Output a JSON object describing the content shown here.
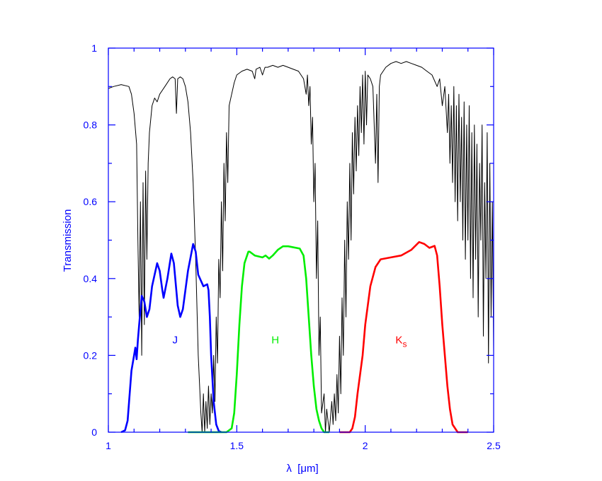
{
  "chart_data": {
    "type": "line",
    "title": "",
    "xlabel": "λ  [μm]",
    "ylabel": "Transmission",
    "xlim": [
      1.0,
      2.5
    ],
    "ylim": [
      0,
      1
    ],
    "x_ticks": [
      "1",
      "1.5",
      "2",
      "2.5"
    ],
    "x_tick_values": [
      1,
      1.5,
      2,
      2.5
    ],
    "y_ticks": [
      "0",
      "0.2",
      "0.4",
      "0.6",
      "0.8",
      "1"
    ],
    "y_tick_values": [
      0,
      0.2,
      0.4,
      0.6,
      0.8,
      1
    ],
    "grid": false,
    "colors": {
      "axis": "#0000ff",
      "atmosphere": "#000000",
      "J": "#0000ff",
      "H": "#00ee00",
      "Ks": "#ff0000"
    },
    "annotations": [
      {
        "text": "J",
        "x": 1.26,
        "y": 0.25,
        "color": "#0000ff"
      },
      {
        "text": "H",
        "x": 1.65,
        "y": 0.25,
        "color": "#00ee00"
      },
      {
        "text": "K",
        "sub": "s",
        "x": 2.14,
        "y": 0.25,
        "color": "#ff0000"
      }
    ],
    "series": [
      {
        "name": "atmosphere",
        "x": [
          1.0,
          1.02,
          1.05,
          1.08,
          1.09,
          1.1,
          1.11,
          1.115,
          1.12,
          1.125,
          1.13,
          1.135,
          1.14,
          1.145,
          1.15,
          1.155,
          1.16,
          1.17,
          1.18,
          1.19,
          1.2,
          1.22,
          1.24,
          1.25,
          1.26,
          1.265,
          1.27,
          1.28,
          1.29,
          1.3,
          1.31,
          1.32,
          1.33,
          1.34,
          1.35,
          1.36,
          1.365,
          1.37,
          1.375,
          1.38,
          1.385,
          1.39,
          1.395,
          1.4,
          1.405,
          1.41,
          1.415,
          1.42,
          1.425,
          1.43,
          1.435,
          1.44,
          1.445,
          1.45,
          1.455,
          1.46,
          1.465,
          1.47,
          1.48,
          1.49,
          1.5,
          1.52,
          1.54,
          1.56,
          1.57,
          1.575,
          1.59,
          1.6,
          1.61,
          1.62,
          1.64,
          1.66,
          1.68,
          1.7,
          1.72,
          1.74,
          1.75,
          1.76,
          1.77,
          1.775,
          1.78,
          1.785,
          1.79,
          1.795,
          1.8,
          1.805,
          1.81,
          1.815,
          1.82,
          1.825,
          1.83,
          1.84,
          1.845,
          1.85,
          1.86,
          1.87,
          1.875,
          1.88,
          1.885,
          1.89,
          1.895,
          1.9,
          1.905,
          1.91,
          1.915,
          1.92,
          1.925,
          1.93,
          1.935,
          1.94,
          1.945,
          1.95,
          1.955,
          1.96,
          1.965,
          1.97,
          1.975,
          1.98,
          1.985,
          1.99,
          1.995,
          2.0,
          2.005,
          2.01,
          2.02,
          2.03,
          2.04,
          2.045,
          2.05,
          2.055,
          2.06,
          2.08,
          2.1,
          2.12,
          2.14,
          2.16,
          2.18,
          2.2,
          2.22,
          2.24,
          2.26,
          2.28,
          2.29,
          2.3,
          2.31,
          2.32,
          2.325,
          2.33,
          2.335,
          2.34,
          2.345,
          2.35,
          2.355,
          2.36,
          2.365,
          2.37,
          2.375,
          2.38,
          2.385,
          2.39,
          2.395,
          2.4,
          2.405,
          2.41,
          2.415,
          2.42,
          2.425,
          2.43,
          2.435,
          2.44,
          2.445,
          2.45,
          2.455,
          2.46,
          2.465,
          2.47,
          2.475,
          2.48,
          2.485,
          2.49,
          2.495,
          2.5
        ],
        "y": [
          0.895,
          0.9,
          0.905,
          0.9,
          0.88,
          0.83,
          0.75,
          0.5,
          0.3,
          0.6,
          0.2,
          0.65,
          0.28,
          0.68,
          0.45,
          0.7,
          0.78,
          0.85,
          0.87,
          0.86,
          0.88,
          0.9,
          0.92,
          0.925,
          0.92,
          0.83,
          0.92,
          0.925,
          0.92,
          0.9,
          0.86,
          0.78,
          0.65,
          0.45,
          0.2,
          0.05,
          0.0,
          0.1,
          0.0,
          0.08,
          0.01,
          0.12,
          0.02,
          0.1,
          0.05,
          0.2,
          0.08,
          0.3,
          0.18,
          0.45,
          0.35,
          0.6,
          0.42,
          0.7,
          0.55,
          0.78,
          0.65,
          0.85,
          0.88,
          0.91,
          0.93,
          0.94,
          0.945,
          0.94,
          0.92,
          0.945,
          0.95,
          0.93,
          0.95,
          0.95,
          0.955,
          0.95,
          0.955,
          0.95,
          0.945,
          0.94,
          0.93,
          0.92,
          0.88,
          0.93,
          0.85,
          0.9,
          0.75,
          0.82,
          0.6,
          0.7,
          0.4,
          0.55,
          0.2,
          0.3,
          0.05,
          0.1,
          0.0,
          0.06,
          0.0,
          0.08,
          0.02,
          0.1,
          0.03,
          0.15,
          0.05,
          0.25,
          0.1,
          0.35,
          0.2,
          0.5,
          0.3,
          0.6,
          0.45,
          0.7,
          0.5,
          0.78,
          0.62,
          0.82,
          0.68,
          0.85,
          0.72,
          0.9,
          0.78,
          0.93,
          0.75,
          0.94,
          0.8,
          0.93,
          0.92,
          0.9,
          0.7,
          0.88,
          0.65,
          0.9,
          0.93,
          0.95,
          0.96,
          0.965,
          0.96,
          0.965,
          0.96,
          0.955,
          0.95,
          0.94,
          0.93,
          0.9,
          0.92,
          0.85,
          0.9,
          0.78,
          0.88,
          0.7,
          0.85,
          0.65,
          0.9,
          0.6,
          0.85,
          0.55,
          0.88,
          0.6,
          0.82,
          0.5,
          0.86,
          0.45,
          0.8,
          0.5,
          0.85,
          0.4,
          0.78,
          0.35,
          0.8,
          0.45,
          0.75,
          0.3,
          0.7,
          0.5,
          0.8,
          0.25,
          0.65,
          0.4,
          0.78,
          0.18,
          0.7,
          0.3,
          0.6,
          0.2
        ]
      },
      {
        "name": "J",
        "x": [
          1.05,
          1.065,
          1.075,
          1.083,
          1.09,
          1.1,
          1.105,
          1.11,
          1.115,
          1.12,
          1.13,
          1.14,
          1.15,
          1.16,
          1.17,
          1.19,
          1.2,
          1.21,
          1.215,
          1.23,
          1.245,
          1.255,
          1.27,
          1.28,
          1.29,
          1.31,
          1.33,
          1.34,
          1.35,
          1.37,
          1.385,
          1.39,
          1.395,
          1.4,
          1.41,
          1.42,
          1.43,
          1.44
        ],
        "y": [
          0,
          0.005,
          0.03,
          0.1,
          0.16,
          0.2,
          0.22,
          0.19,
          0.24,
          0.28,
          0.355,
          0.34,
          0.3,
          0.32,
          0.38,
          0.44,
          0.42,
          0.37,
          0.35,
          0.4,
          0.465,
          0.44,
          0.33,
          0.3,
          0.32,
          0.42,
          0.49,
          0.47,
          0.41,
          0.38,
          0.385,
          0.37,
          0.3,
          0.2,
          0.08,
          0.02,
          0.003,
          0
        ]
      },
      {
        "name": "H",
        "x": [
          1.31,
          1.46,
          1.48,
          1.49,
          1.5,
          1.51,
          1.52,
          1.53,
          1.545,
          1.55,
          1.56,
          1.57,
          1.6,
          1.612,
          1.626,
          1.64,
          1.66,
          1.68,
          1.7,
          1.745,
          1.76,
          1.77,
          1.78,
          1.79,
          1.8,
          1.81,
          1.82,
          1.83,
          1.84,
          1.86
        ],
        "y": [
          0,
          0,
          0.01,
          0.05,
          0.15,
          0.28,
          0.38,
          0.44,
          0.47,
          0.47,
          0.465,
          0.46,
          0.455,
          0.46,
          0.452,
          0.46,
          0.475,
          0.484,
          0.484,
          0.478,
          0.46,
          0.4,
          0.3,
          0.2,
          0.12,
          0.06,
          0.03,
          0.01,
          0,
          0
        ]
      },
      {
        "name": "Ks",
        "x": [
          1.9,
          1.94,
          1.95,
          1.96,
          1.97,
          1.99,
          2.0,
          2.02,
          2.04,
          2.06,
          2.1,
          2.14,
          2.18,
          2.21,
          2.23,
          2.25,
          2.27,
          2.28,
          2.29,
          2.3,
          2.31,
          2.32,
          2.33,
          2.34,
          2.36,
          2.4
        ],
        "y": [
          0,
          0,
          0.01,
          0.04,
          0.1,
          0.2,
          0.28,
          0.38,
          0.43,
          0.45,
          0.455,
          0.46,
          0.475,
          0.495,
          0.49,
          0.48,
          0.485,
          0.46,
          0.38,
          0.28,
          0.2,
          0.12,
          0.06,
          0.02,
          0,
          0
        ]
      }
    ]
  }
}
